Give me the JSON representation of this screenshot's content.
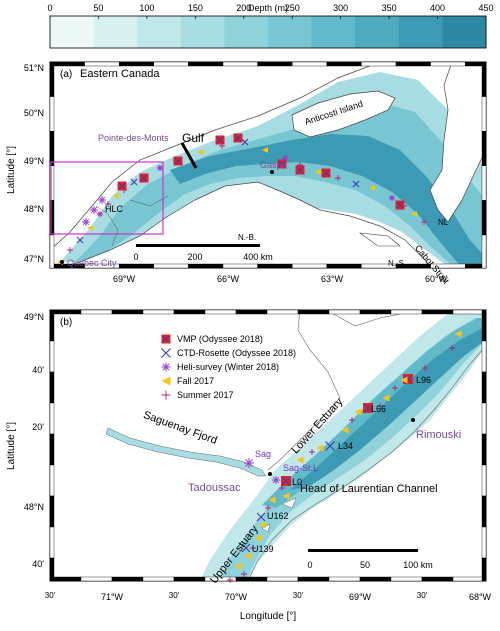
{
  "colorbar": {
    "title": "Depth (m)",
    "ticks": [
      "0",
      "50",
      "100",
      "150",
      "200",
      "250",
      "300",
      "350",
      "400",
      "450"
    ],
    "colors": [
      "#eef8f8",
      "#d9f0f1",
      "#c0e7ea",
      "#a7dde2",
      "#8fd2da",
      "#78c6d2",
      "#62b9c9",
      "#4eaabf",
      "#3d9ab4",
      "#2d88a6"
    ]
  },
  "panel_a": {
    "label": "(a)",
    "region_title": "Eastern Canada",
    "lat_ticks": [
      "51°N",
      "50°N",
      "49°N",
      "48°N",
      "47°N"
    ],
    "lon_ticks": [
      "69°W",
      "66°W",
      "63°W",
      "60°W"
    ],
    "ylabel": "Latitude [°]",
    "places": {
      "pointe": "Pointe-des-Monts",
      "gulf": "Gulf",
      "anticosti": "Anticosti Island",
      "gaspe": "Gaspe",
      "hlc": "HLC",
      "nb": "N.-B.",
      "nl": "NL",
      "cabot": "Cabot Strait",
      "ns": "N.-S.",
      "quebec": "Quebec City"
    },
    "scale": {
      "labels": [
        "0",
        "200",
        "400 km"
      ]
    }
  },
  "panel_b": {
    "label": "(b)",
    "lat_ticks": [
      "49°N",
      "40'",
      "20'",
      "48°N",
      "40'"
    ],
    "lon_ticks": [
      "30'",
      "71°W",
      "30'",
      "70°W",
      "30'",
      "69°W",
      "30'",
      "68°W"
    ],
    "ylabel": "Latitude [°]",
    "xlabel": "Longitude [°]",
    "legend": [
      {
        "label": "VMP (Odyssee 2018)",
        "symbol": "square",
        "color": "#e0232b"
      },
      {
        "label": "CTD-Rosette (Odyssee 2018)",
        "symbol": "x",
        "color": "#3a3ab0"
      },
      {
        "label": "Heli-survey (Winter 2018)",
        "symbol": "star",
        "color": "#9a3fc8"
      },
      {
        "label": "Fall 2017",
        "symbol": "triangle",
        "color": "#f5c518"
      },
      {
        "label": "Summer 2017",
        "symbol": "plus",
        "color": "#b0207a"
      }
    ],
    "places": {
      "saguenay": "Saguenay Fjord",
      "lower": "Lower Estuary",
      "rimouski": "Rimouski",
      "sag": "Sag",
      "sagstl": "Sag-St.L",
      "tadoussac": "Tadoussac",
      "head": "Head of Laurentian Channel",
      "upper": "Upper Estuary"
    },
    "stations": [
      "L96",
      "L66",
      "L34",
      "L0",
      "U162",
      "U139"
    ],
    "scale": {
      "labels": [
        "0",
        "50",
        "100 km"
      ]
    }
  }
}
